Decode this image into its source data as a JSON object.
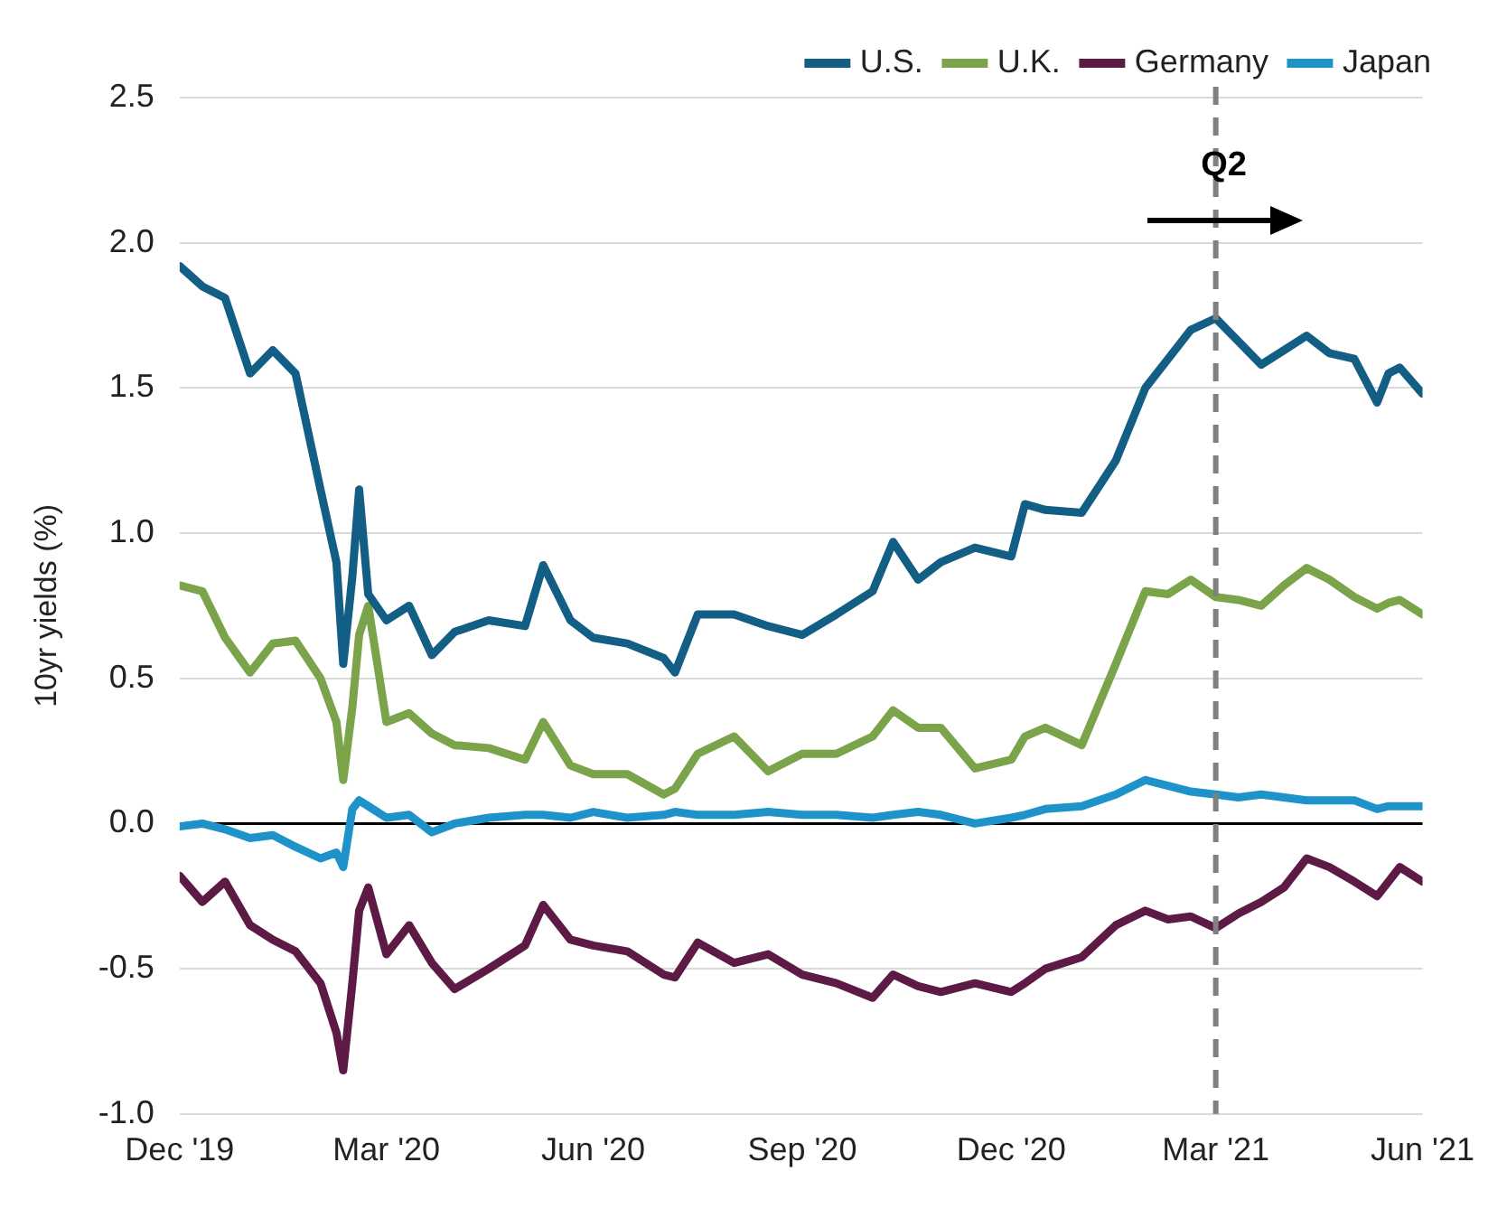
{
  "chart_data": {
    "type": "line",
    "ylabel": "10yr yields (%)",
    "x": [
      "2019-12-31",
      "2020-01-10",
      "2020-01-20",
      "2020-01-31",
      "2020-02-10",
      "2020-02-20",
      "2020-03-02",
      "2020-03-09",
      "2020-03-12",
      "2020-03-16",
      "2020-03-19",
      "2020-03-23",
      "2020-03-31",
      "2020-04-10",
      "2020-04-20",
      "2020-04-30",
      "2020-05-15",
      "2020-05-31",
      "2020-06-08",
      "2020-06-20",
      "2020-06-30",
      "2020-07-15",
      "2020-07-31",
      "2020-08-05",
      "2020-08-15",
      "2020-08-31",
      "2020-09-15",
      "2020-09-30",
      "2020-10-15",
      "2020-10-31",
      "2020-11-09",
      "2020-11-20",
      "2020-11-30",
      "2020-12-15",
      "2020-12-31",
      "2021-01-06",
      "2021-01-15",
      "2021-01-31",
      "2021-02-15",
      "2021-02-28",
      "2021-03-10",
      "2021-03-20",
      "2021-03-31",
      "2021-04-10",
      "2021-04-20",
      "2021-04-30",
      "2021-05-10",
      "2021-05-20",
      "2021-05-31",
      "2021-06-10",
      "2021-06-15",
      "2021-06-20",
      "2021-06-30"
    ],
    "series": [
      {
        "name": "U.S.",
        "color": "#135e84",
        "values": [
          1.92,
          1.85,
          1.81,
          1.55,
          1.63,
          1.55,
          1.15,
          0.9,
          0.55,
          0.85,
          1.15,
          0.79,
          0.7,
          0.75,
          0.58,
          0.66,
          0.7,
          0.68,
          0.89,
          0.7,
          0.64,
          0.62,
          0.57,
          0.52,
          0.72,
          0.72,
          0.68,
          0.65,
          0.72,
          0.8,
          0.97,
          0.84,
          0.9,
          0.95,
          0.92,
          1.1,
          1.08,
          1.07,
          1.25,
          1.5,
          1.6,
          1.7,
          1.74,
          1.66,
          1.58,
          1.63,
          1.68,
          1.62,
          1.6,
          1.45,
          1.55,
          1.57,
          1.48
        ]
      },
      {
        "name": "U.K.",
        "color": "#7ba34a",
        "values": [
          0.82,
          0.8,
          0.64,
          0.52,
          0.62,
          0.63,
          0.5,
          0.35,
          0.15,
          0.4,
          0.65,
          0.75,
          0.35,
          0.38,
          0.31,
          0.27,
          0.26,
          0.22,
          0.35,
          0.2,
          0.17,
          0.17,
          0.1,
          0.12,
          0.24,
          0.3,
          0.18,
          0.24,
          0.24,
          0.3,
          0.39,
          0.33,
          0.33,
          0.19,
          0.22,
          0.3,
          0.33,
          0.27,
          0.55,
          0.8,
          0.79,
          0.84,
          0.78,
          0.77,
          0.75,
          0.82,
          0.88,
          0.84,
          0.78,
          0.74,
          0.76,
          0.77,
          0.72
        ]
      },
      {
        "name": "Germany",
        "color": "#5c1a44",
        "values": [
          -0.18,
          -0.27,
          -0.2,
          -0.35,
          -0.4,
          -0.44,
          -0.55,
          -0.72,
          -0.85,
          -0.55,
          -0.3,
          -0.22,
          -0.45,
          -0.35,
          -0.48,
          -0.57,
          -0.5,
          -0.42,
          -0.28,
          -0.4,
          -0.42,
          -0.44,
          -0.52,
          -0.53,
          -0.41,
          -0.48,
          -0.45,
          -0.52,
          -0.55,
          -0.6,
          -0.52,
          -0.56,
          -0.58,
          -0.55,
          -0.58,
          -0.55,
          -0.5,
          -0.46,
          -0.35,
          -0.3,
          -0.33,
          -0.32,
          -0.36,
          -0.31,
          -0.27,
          -0.22,
          -0.12,
          -0.15,
          -0.2,
          -0.25,
          -0.2,
          -0.15,
          -0.2
        ]
      },
      {
        "name": "Japan",
        "color": "#1e93c9",
        "values": [
          -0.01,
          0.0,
          -0.02,
          -0.05,
          -0.04,
          -0.08,
          -0.12,
          -0.1,
          -0.15,
          0.05,
          0.08,
          0.06,
          0.02,
          0.03,
          -0.03,
          0.0,
          0.02,
          0.03,
          0.03,
          0.02,
          0.04,
          0.02,
          0.03,
          0.04,
          0.03,
          0.03,
          0.04,
          0.03,
          0.03,
          0.02,
          0.03,
          0.04,
          0.03,
          0.0,
          0.02,
          0.03,
          0.05,
          0.06,
          0.1,
          0.15,
          0.13,
          0.11,
          0.1,
          0.09,
          0.1,
          0.09,
          0.08,
          0.08,
          0.08,
          0.05,
          0.06,
          0.06,
          0.06
        ]
      }
    ],
    "xlim": [
      "2019-12-31",
      "2021-06-30"
    ],
    "xticks": [
      {
        "value": "2019-12-31",
        "label": "Dec '19"
      },
      {
        "value": "2020-03-31",
        "label": "Mar '20"
      },
      {
        "value": "2020-06-30",
        "label": "Jun '20"
      },
      {
        "value": "2020-09-30",
        "label": "Sep '20"
      },
      {
        "value": "2020-12-31",
        "label": "Dec '20"
      },
      {
        "value": "2021-03-31",
        "label": "Mar '21"
      },
      {
        "value": "2021-06-30",
        "label": "Jun '21"
      }
    ],
    "ylim": [
      -1.0,
      2.5
    ],
    "yticks": [
      {
        "value": -1.0,
        "label": "-1.0"
      },
      {
        "value": -0.5,
        "label": "-0.5"
      },
      {
        "value": 0,
        "label": "0.0"
      },
      {
        "value": 0.5,
        "label": "0.5"
      },
      {
        "value": 1.0,
        "label": "1.0"
      },
      {
        "value": 1.5,
        "label": "1.5"
      },
      {
        "value": 2.0,
        "label": "2.0"
      },
      {
        "value": 2.5,
        "label": "2.5"
      }
    ],
    "ref_lines": [
      {
        "axis": "x",
        "value": "2021-03-31",
        "color": "#808080",
        "line_style": "dashed"
      }
    ],
    "annotations": [
      "Q2"
    ],
    "grid": "y",
    "legend": "top right",
    "marker": "none",
    "line_style": "solid"
  }
}
